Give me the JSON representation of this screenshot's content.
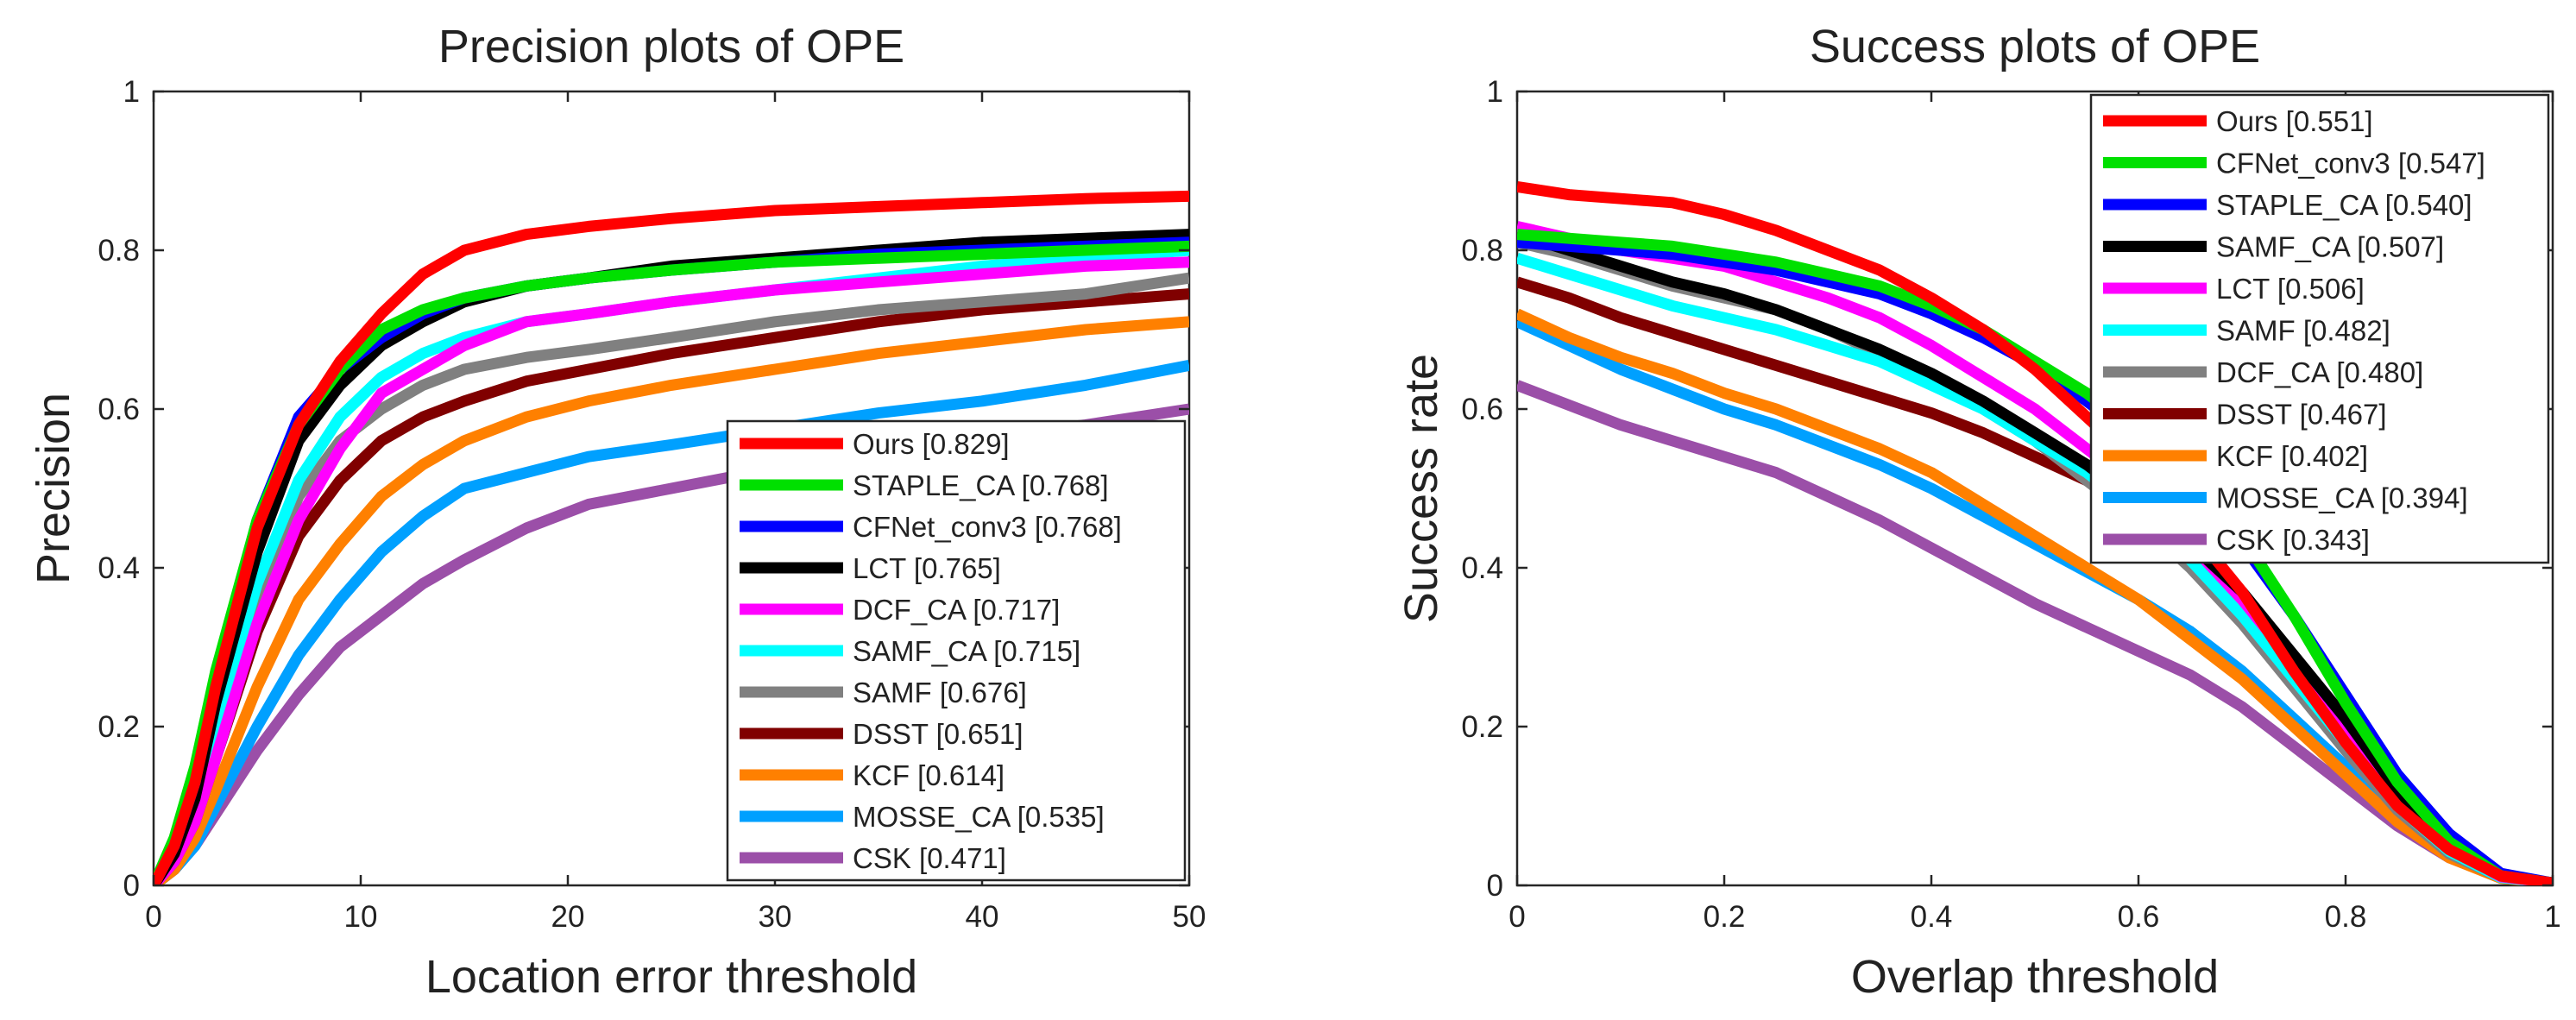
{
  "chart_data": [
    {
      "type": "line",
      "title": "Precision plots of OPE",
      "xlabel": "Location error threshold",
      "ylabel": "Precision",
      "xlim": [
        0,
        50
      ],
      "ylim": [
        0,
        1
      ],
      "xticks": [
        "0",
        "10",
        "20",
        "30",
        "40",
        "50"
      ],
      "xtick_values": [
        0,
        10,
        20,
        30,
        40,
        50
      ],
      "yticks": [
        "0",
        "0.2",
        "0.4",
        "0.6",
        "0.8",
        "1"
      ],
      "ytick_values": [
        0,
        0.2,
        0.4,
        0.6,
        0.8,
        1
      ],
      "legend_location": "bottom-right",
      "x": [
        0,
        1,
        2,
        3,
        5,
        7,
        9,
        11,
        13,
        15,
        18,
        21,
        25,
        30,
        35,
        40,
        45,
        50
      ],
      "series": [
        {
          "name": "Ours",
          "score": "[0.829]",
          "color": "#ff0000",
          "values": [
            0,
            0.05,
            0.13,
            0.25,
            0.45,
            0.58,
            0.66,
            0.72,
            0.77,
            0.8,
            0.82,
            0.83,
            0.84,
            0.85,
            0.855,
            0.86,
            0.865,
            0.868
          ]
        },
        {
          "name": "STAPLE_CA",
          "score": "[0.768]",
          "color": "#00e000",
          "values": [
            0,
            0.06,
            0.15,
            0.27,
            0.46,
            0.58,
            0.65,
            0.7,
            0.725,
            0.74,
            0.755,
            0.765,
            0.775,
            0.785,
            0.79,
            0.795,
            0.8,
            0.805
          ]
        },
        {
          "name": "CFNet_conv3",
          "score": "[0.768]",
          "color": "#0000ff",
          "values": [
            0,
            0.05,
            0.13,
            0.26,
            0.46,
            0.59,
            0.65,
            0.69,
            0.72,
            0.74,
            0.755,
            0.765,
            0.775,
            0.785,
            0.795,
            0.8,
            0.805,
            0.81
          ]
        },
        {
          "name": "LCT",
          "score": "[0.765]",
          "color": "#000000",
          "values": [
            0,
            0.04,
            0.11,
            0.23,
            0.42,
            0.56,
            0.63,
            0.68,
            0.71,
            0.735,
            0.755,
            0.765,
            0.78,
            0.79,
            0.8,
            0.81,
            0.815,
            0.82
          ]
        },
        {
          "name": "DCF_CA",
          "score": "[0.717]",
          "color": "#ff00ff",
          "values": [
            0,
            0.03,
            0.08,
            0.16,
            0.33,
            0.46,
            0.55,
            0.62,
            0.65,
            0.68,
            0.71,
            0.72,
            0.735,
            0.75,
            0.76,
            0.77,
            0.78,
            0.785
          ]
        },
        {
          "name": "SAMF_CA",
          "score": "[0.715]",
          "color": "#00ffff",
          "values": [
            0,
            0.04,
            0.1,
            0.2,
            0.38,
            0.51,
            0.59,
            0.64,
            0.67,
            0.69,
            0.71,
            0.72,
            0.735,
            0.75,
            0.765,
            0.78,
            0.79,
            0.8
          ]
        },
        {
          "name": "SAMF",
          "score": "[0.676]",
          "color": "#808080",
          "values": [
            0,
            0.04,
            0.1,
            0.19,
            0.36,
            0.49,
            0.56,
            0.6,
            0.63,
            0.65,
            0.665,
            0.675,
            0.69,
            0.71,
            0.725,
            0.735,
            0.745,
            0.765
          ]
        },
        {
          "name": "DSST",
          "score": "[0.651]",
          "color": "#800000",
          "values": [
            0,
            0.03,
            0.08,
            0.16,
            0.32,
            0.44,
            0.51,
            0.56,
            0.59,
            0.61,
            0.635,
            0.65,
            0.67,
            0.69,
            0.71,
            0.725,
            0.735,
            0.745
          ]
        },
        {
          "name": "KCF",
          "score": "[0.614]",
          "color": "#ff8000",
          "values": [
            0,
            0.02,
            0.06,
            0.12,
            0.25,
            0.36,
            0.43,
            0.49,
            0.53,
            0.56,
            0.59,
            0.61,
            0.63,
            0.65,
            0.67,
            0.685,
            0.7,
            0.71
          ]
        },
        {
          "name": "MOSSE_CA",
          "score": "[0.535]",
          "color": "#00a0ff",
          "values": [
            0,
            0.02,
            0.05,
            0.1,
            0.2,
            0.29,
            0.36,
            0.42,
            0.465,
            0.5,
            0.52,
            0.54,
            0.555,
            0.575,
            0.595,
            0.61,
            0.63,
            0.655
          ]
        },
        {
          "name": "CSK",
          "score": "[0.471]",
          "color": "#9b4fa8",
          "values": [
            0,
            0.02,
            0.05,
            0.09,
            0.17,
            0.24,
            0.3,
            0.34,
            0.38,
            0.41,
            0.45,
            0.48,
            0.5,
            0.525,
            0.545,
            0.565,
            0.58,
            0.6
          ]
        }
      ]
    },
    {
      "type": "line",
      "title": "Success plots of OPE",
      "xlabel": "Overlap threshold",
      "ylabel": "Success rate",
      "xlim": [
        0,
        1
      ],
      "ylim": [
        0,
        1
      ],
      "xticks": [
        "0",
        "0.2",
        "0.4",
        "0.6",
        "0.8",
        "1"
      ],
      "xtick_values": [
        0,
        0.2,
        0.4,
        0.6,
        0.8,
        1
      ],
      "yticks": [
        "0",
        "0.2",
        "0.4",
        "0.6",
        "0.8",
        "1"
      ],
      "ytick_values": [
        0,
        0.2,
        0.4,
        0.6,
        0.8,
        1
      ],
      "legend_location": "top-right",
      "x": [
        0,
        0.05,
        0.1,
        0.15,
        0.2,
        0.25,
        0.3,
        0.35,
        0.4,
        0.45,
        0.5,
        0.55,
        0.6,
        0.65,
        0.7,
        0.75,
        0.8,
        0.85,
        0.9,
        0.95,
        1.0
      ],
      "series": [
        {
          "name": "Ours",
          "score": "[0.551]",
          "color": "#ff0000",
          "values": [
            0.88,
            0.87,
            0.865,
            0.86,
            0.845,
            0.825,
            0.8,
            0.775,
            0.74,
            0.7,
            0.65,
            0.59,
            0.53,
            0.45,
            0.37,
            0.27,
            0.18,
            0.1,
            0.045,
            0.012,
            0.003
          ]
        },
        {
          "name": "CFNet_conv3",
          "score": "[0.547]",
          "color": "#00e000",
          "values": [
            0.82,
            0.815,
            0.81,
            0.805,
            0.795,
            0.785,
            0.77,
            0.755,
            0.73,
            0.7,
            0.66,
            0.62,
            0.57,
            0.51,
            0.44,
            0.34,
            0.23,
            0.13,
            0.055,
            0.012,
            0.003
          ]
        },
        {
          "name": "STAPLE_CA",
          "score": "[0.540]",
          "color": "#0000ff",
          "values": [
            0.81,
            0.805,
            0.8,
            0.795,
            0.785,
            0.775,
            0.76,
            0.745,
            0.72,
            0.69,
            0.655,
            0.61,
            0.56,
            0.5,
            0.43,
            0.34,
            0.24,
            0.14,
            0.065,
            0.015,
            0.003
          ]
        },
        {
          "name": "SAMF_CA",
          "score": "[0.507]",
          "color": "#000000",
          "values": [
            0.82,
            0.8,
            0.78,
            0.76,
            0.745,
            0.725,
            0.7,
            0.675,
            0.645,
            0.61,
            0.57,
            0.53,
            0.48,
            0.43,
            0.37,
            0.29,
            0.21,
            0.12,
            0.055,
            0.013,
            0.003
          ]
        },
        {
          "name": "LCT",
          "score": "[0.506]",
          "color": "#ff00ff",
          "values": [
            0.83,
            0.815,
            0.8,
            0.79,
            0.78,
            0.76,
            0.74,
            0.715,
            0.68,
            0.64,
            0.6,
            0.55,
            0.5,
            0.43,
            0.36,
            0.28,
            0.2,
            0.11,
            0.048,
            0.011,
            0.003
          ]
        },
        {
          "name": "SAMF",
          "score": "[0.482]",
          "color": "#00ffff",
          "values": [
            0.79,
            0.77,
            0.75,
            0.73,
            0.715,
            0.7,
            0.68,
            0.66,
            0.63,
            0.6,
            0.56,
            0.52,
            0.47,
            0.41,
            0.34,
            0.26,
            0.18,
            0.1,
            0.043,
            0.01,
            0.003
          ]
        },
        {
          "name": "DCF_CA",
          "score": "[0.480]",
          "color": "#808080",
          "values": [
            0.81,
            0.795,
            0.775,
            0.755,
            0.74,
            0.725,
            0.7,
            0.67,
            0.64,
            0.6,
            0.56,
            0.51,
            0.46,
            0.4,
            0.33,
            0.25,
            0.17,
            0.095,
            0.04,
            0.01,
            0.003
          ]
        },
        {
          "name": "DSST",
          "score": "[0.467]",
          "color": "#800000",
          "values": [
            0.76,
            0.74,
            0.715,
            0.695,
            0.675,
            0.655,
            0.635,
            0.615,
            0.595,
            0.57,
            0.54,
            0.51,
            0.47,
            0.42,
            0.36,
            0.28,
            0.2,
            0.11,
            0.05,
            0.012,
            0.003
          ]
        },
        {
          "name": "KCF",
          "score": "[0.402]",
          "color": "#ff8000",
          "values": [
            0.72,
            0.69,
            0.665,
            0.645,
            0.62,
            0.6,
            0.575,
            0.55,
            0.52,
            0.48,
            0.44,
            0.4,
            0.36,
            0.31,
            0.26,
            0.2,
            0.14,
            0.08,
            0.035,
            0.009,
            0.003
          ]
        },
        {
          "name": "MOSSE_CA",
          "score": "[0.394]",
          "color": "#00a0ff",
          "values": [
            0.71,
            0.68,
            0.65,
            0.625,
            0.6,
            0.58,
            0.555,
            0.53,
            0.5,
            0.465,
            0.43,
            0.395,
            0.36,
            0.32,
            0.27,
            0.21,
            0.15,
            0.09,
            0.04,
            0.01,
            0.003
          ]
        },
        {
          "name": "CSK",
          "score": "[0.343]",
          "color": "#9b4fa8",
          "values": [
            0.63,
            0.605,
            0.58,
            0.56,
            0.54,
            0.52,
            0.49,
            0.46,
            0.425,
            0.39,
            0.355,
            0.325,
            0.295,
            0.265,
            0.225,
            0.175,
            0.125,
            0.075,
            0.035,
            0.01,
            0.003
          ]
        }
      ]
    }
  ]
}
